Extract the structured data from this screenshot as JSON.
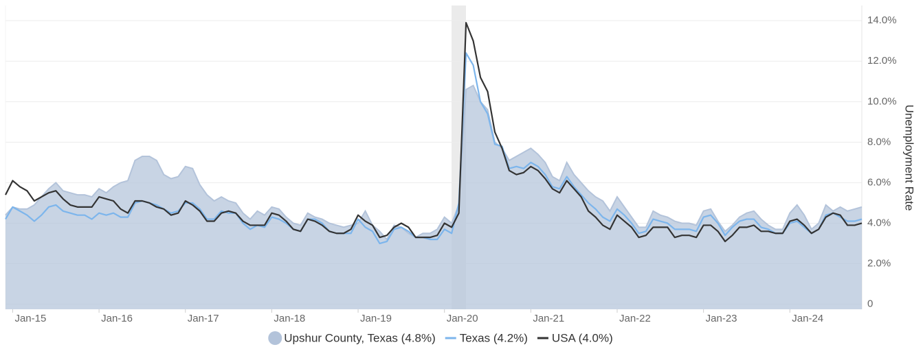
{
  "chart_data": {
    "type": "line",
    "y_axis_label": "Unemployment Rate",
    "ylim": [
      -0.25,
      14.75
    ],
    "yticks": [
      0,
      {
        "value": 2,
        "label": "2.0%"
      },
      {
        "value": 4,
        "label": "4.0%"
      },
      {
        "value": 6,
        "label": "6.0%"
      },
      {
        "value": 8,
        "label": "8.0%"
      },
      {
        "value": 10,
        "label": "10.0%"
      },
      {
        "value": 12,
        "label": "12.0%"
      },
      {
        "value": 14,
        "label": "14.0%"
      }
    ],
    "grid": true,
    "legend": "bottom",
    "categories": [
      null,
      "Jan-15",
      null,
      null,
      null,
      null,
      null,
      null,
      null,
      null,
      null,
      null,
      null,
      "Jan-16",
      null,
      null,
      null,
      null,
      null,
      null,
      null,
      null,
      null,
      null,
      null,
      "Jan-17",
      null,
      null,
      null,
      null,
      null,
      null,
      null,
      null,
      null,
      null,
      null,
      "Jan-18",
      null,
      null,
      null,
      null,
      null,
      null,
      null,
      null,
      null,
      null,
      null,
      "Jan-19",
      null,
      null,
      null,
      null,
      null,
      null,
      null,
      null,
      null,
      null,
      null,
      "Jan-20",
      null,
      null,
      null,
      null,
      null,
      null,
      null,
      null,
      null,
      null,
      null,
      "Jan-21",
      null,
      null,
      null,
      null,
      null,
      null,
      null,
      null,
      null,
      null,
      null,
      "Jan-22",
      null,
      null,
      null,
      null,
      null,
      null,
      null,
      null,
      null,
      null,
      null,
      "Jan-23",
      null,
      null,
      null,
      null,
      null,
      null,
      null,
      null,
      null,
      null,
      null,
      "Jan-24",
      null,
      null,
      null,
      null,
      null,
      null,
      null,
      null,
      null,
      null
    ],
    "series": [
      {
        "name": "Upshur County, Texas (4.8%)",
        "type": "area",
        "color": "#b3c3da",
        "values": [
          4.4,
          4.8,
          4.7,
          4.7,
          4.9,
          5.3,
          5.7,
          6.0,
          5.6,
          5.5,
          5.4,
          5.4,
          5.3,
          5.7,
          5.5,
          5.8,
          6.0,
          6.1,
          7.1,
          7.3,
          7.3,
          7.1,
          6.4,
          6.2,
          6.3,
          6.8,
          6.7,
          5.9,
          5.4,
          5.1,
          5.3,
          5.1,
          5.0,
          4.5,
          4.2,
          4.6,
          4.4,
          4.8,
          4.7,
          4.3,
          4.0,
          3.9,
          4.5,
          4.3,
          4.2,
          4.0,
          3.9,
          3.8,
          3.9,
          4.0,
          4.6,
          3.9,
          3.6,
          3.2,
          3.9,
          3.8,
          3.5,
          3.3,
          3.5,
          3.5,
          3.7,
          4.3,
          4.0,
          4.9,
          10.6,
          10.8,
          10.0,
          9.6,
          8.0,
          7.7,
          7.1,
          7.3,
          7.5,
          7.7,
          7.4,
          7.0,
          6.3,
          6.1,
          7.0,
          6.4,
          6.0,
          5.6,
          5.3,
          5.1,
          4.6,
          5.3,
          4.8,
          4.3,
          3.8,
          3.8,
          4.6,
          4.4,
          4.3,
          4.1,
          4.0,
          4.0,
          3.9,
          4.6,
          4.7,
          4.1,
          3.6,
          3.9,
          4.3,
          4.5,
          4.6,
          4.2,
          3.9,
          3.7,
          3.7,
          4.5,
          4.9,
          4.4,
          3.7,
          4.0,
          4.9,
          4.6,
          4.8,
          4.6,
          4.7,
          4.8
        ]
      },
      {
        "name": "Texas (4.2%)",
        "type": "line",
        "color": "#7cb5ec",
        "values": [
          4.2,
          4.8,
          4.6,
          4.4,
          4.1,
          4.4,
          4.8,
          4.9,
          4.6,
          4.5,
          4.4,
          4.4,
          4.2,
          4.5,
          4.4,
          4.5,
          4.3,
          4.3,
          5.0,
          5.1,
          5.0,
          4.9,
          4.7,
          4.5,
          4.6,
          5.0,
          5.0,
          4.7,
          4.2,
          4.2,
          4.6,
          4.5,
          4.5,
          4.0,
          3.7,
          3.9,
          3.8,
          4.3,
          4.2,
          4.0,
          3.7,
          3.6,
          4.2,
          4.2,
          4.0,
          3.6,
          3.5,
          3.5,
          3.5,
          4.2,
          3.8,
          3.6,
          3.0,
          3.1,
          3.7,
          3.8,
          3.6,
          3.3,
          3.3,
          3.2,
          3.2,
          3.7,
          3.5,
          5.0,
          12.4,
          11.8,
          10.0,
          9.4,
          7.9,
          7.8,
          6.7,
          6.8,
          6.7,
          7.0,
          6.8,
          6.4,
          5.8,
          5.7,
          6.3,
          5.8,
          5.4,
          5.0,
          4.7,
          4.3,
          4.1,
          4.7,
          4.4,
          4.0,
          3.5,
          3.6,
          4.2,
          4.1,
          4.0,
          3.7,
          3.7,
          3.7,
          3.6,
          4.3,
          4.4,
          4.0,
          3.4,
          3.8,
          4.1,
          4.2,
          4.2,
          3.8,
          3.7,
          3.5,
          3.5,
          4.0,
          4.1,
          3.8,
          3.5,
          3.7,
          4.4,
          4.5,
          4.3,
          4.1,
          4.1,
          4.2
        ]
      },
      {
        "name": "USA (4.0%)",
        "type": "line",
        "color": "#333333",
        "values": [
          5.4,
          6.1,
          5.8,
          5.6,
          5.1,
          5.3,
          5.5,
          5.6,
          5.2,
          4.9,
          4.8,
          4.8,
          4.8,
          5.3,
          5.2,
          5.1,
          4.7,
          4.5,
          5.1,
          5.1,
          5.0,
          4.8,
          4.7,
          4.4,
          4.5,
          5.1,
          4.9,
          4.6,
          4.1,
          4.1,
          4.5,
          4.6,
          4.5,
          4.1,
          3.9,
          3.9,
          3.9,
          4.5,
          4.4,
          4.1,
          3.7,
          3.6,
          4.2,
          4.1,
          3.9,
          3.6,
          3.5,
          3.5,
          3.7,
          4.4,
          4.1,
          3.9,
          3.3,
          3.4,
          3.8,
          4.0,
          3.8,
          3.3,
          3.3,
          3.3,
          3.4,
          4.0,
          3.8,
          4.5,
          13.9,
          13.0,
          11.2,
          10.5,
          8.5,
          7.7,
          6.6,
          6.4,
          6.5,
          6.8,
          6.6,
          6.2,
          5.7,
          5.5,
          6.1,
          5.7,
          5.3,
          4.6,
          4.3,
          3.9,
          3.7,
          4.4,
          4.1,
          3.8,
          3.3,
          3.4,
          3.8,
          3.8,
          3.8,
          3.3,
          3.4,
          3.4,
          3.3,
          3.9,
          3.9,
          3.6,
          3.1,
          3.4,
          3.8,
          3.8,
          3.9,
          3.6,
          3.6,
          3.5,
          3.5,
          4.1,
          4.2,
          3.9,
          3.5,
          3.7,
          4.3,
          4.5,
          4.4,
          3.9,
          3.9,
          4.0
        ]
      }
    ]
  }
}
